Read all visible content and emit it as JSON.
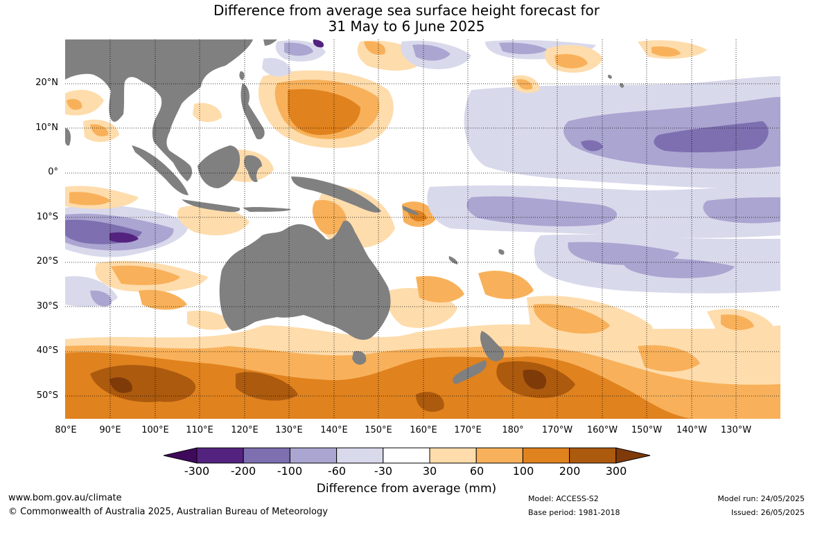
{
  "title": {
    "line1": "Difference from average sea surface height forecast for",
    "line2": "31 May to 6 June 2025"
  },
  "map": {
    "lat_labels": [
      "20°N",
      "10°N",
      "0°",
      "10°S",
      "20°S",
      "30°S",
      "40°S",
      "50°S"
    ],
    "lon_labels": [
      "80°E",
      "90°E",
      "100°E",
      "110°E",
      "120°E",
      "130°E",
      "140°E",
      "150°E",
      "160°E",
      "170°E",
      "180°",
      "170°W",
      "160°W",
      "150°W",
      "140°W",
      "130°W"
    ],
    "land_color": "#808080",
    "ocean_color": "#ffffff",
    "gridlines": "dotted"
  },
  "colorbar": {
    "ticks": [
      "-300",
      "-200",
      "-100",
      "-60",
      "-30",
      "30",
      "60",
      "100",
      "200",
      "300"
    ],
    "colors": [
      "#3f0a5c",
      "#54237f",
      "#7d6fb0",
      "#aba5d1",
      "#d9d9ec",
      "#ffffff",
      "#fedcac",
      "#f8b15a",
      "#e0821e",
      "#ac5a0e",
      "#7e3a09"
    ],
    "title": "Difference from average (mm)"
  },
  "footer": {
    "website": "www.bom.gov.au/climate",
    "copyright": "© Commonwealth of Australia 2025, Australian Bureau of Meteorology",
    "model": "Model: ACCESS-S2",
    "base_period": "Base period: 1981-2018",
    "model_run": "Model run: 24/05/2025",
    "issued": "Issued: 26/05/2025"
  }
}
